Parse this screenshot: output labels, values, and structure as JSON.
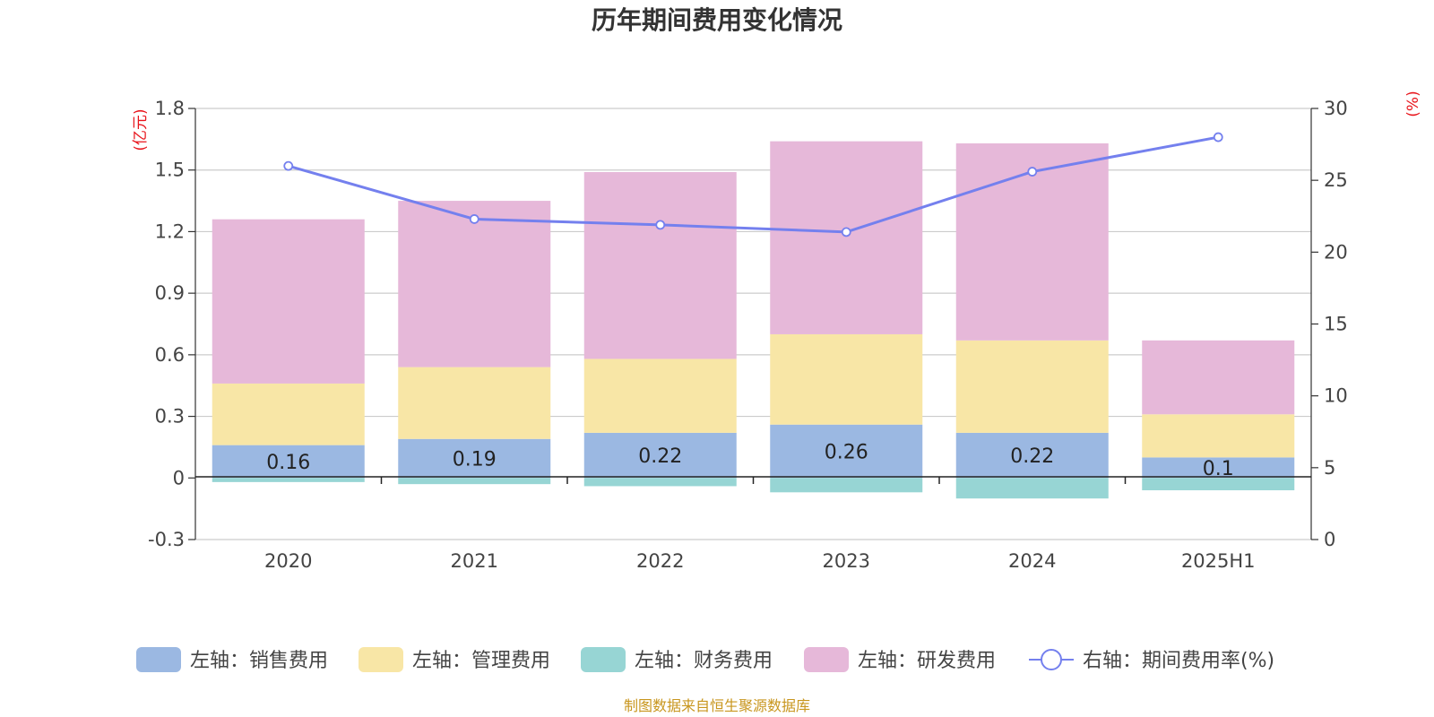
{
  "chart_data": {
    "type": "bar",
    "stacked": true,
    "title": "历年期间费用变化情况",
    "categories": [
      "2020",
      "2021",
      "2022",
      "2023",
      "2024",
      "2025H1"
    ],
    "y_left": {
      "unit": "(亿元)",
      "ylim": [
        -0.3,
        1.8
      ],
      "ticks": [
        "-0.3",
        "0",
        "0.3",
        "0.6",
        "0.9",
        "1.2",
        "1.5",
        "1.8"
      ]
    },
    "y_right": {
      "unit": "(%)",
      "ylim": [
        0,
        30
      ],
      "ticks": [
        "0",
        "5",
        "10",
        "15",
        "20",
        "25",
        "30"
      ]
    },
    "series": [
      {
        "name": "左轴：销售费用",
        "axis": "left",
        "kind": "bar",
        "color": "#9bb8e2",
        "values": [
          0.16,
          0.19,
          0.22,
          0.26,
          0.22,
          0.1
        ],
        "labels": [
          "0.16",
          "0.19",
          "0.22",
          "0.26",
          "0.22",
          "0.1"
        ]
      },
      {
        "name": "左轴：管理费用",
        "axis": "left",
        "kind": "bar",
        "color": "#f8e6a6",
        "values": [
          0.3,
          0.35,
          0.36,
          0.44,
          0.45,
          0.21
        ]
      },
      {
        "name": "左轴：财务费用",
        "axis": "left",
        "kind": "bar",
        "color": "#97d5d4",
        "values": [
          -0.02,
          -0.03,
          -0.04,
          -0.07,
          -0.1,
          -0.06
        ]
      },
      {
        "name": "左轴：研发费用",
        "axis": "left",
        "kind": "bar",
        "color": "#e6b8d9",
        "values": [
          0.8,
          0.81,
          0.91,
          0.94,
          0.96,
          0.36
        ]
      },
      {
        "name": "右轴：期间费用率(%)",
        "axis": "right",
        "kind": "line",
        "color": "#7480ee",
        "values": [
          26.0,
          22.3,
          21.9,
          21.4,
          25.6,
          28.0
        ]
      }
    ],
    "legend_position": "bottom",
    "grid": true,
    "source": "制图数据来自恒生聚源数据库"
  }
}
